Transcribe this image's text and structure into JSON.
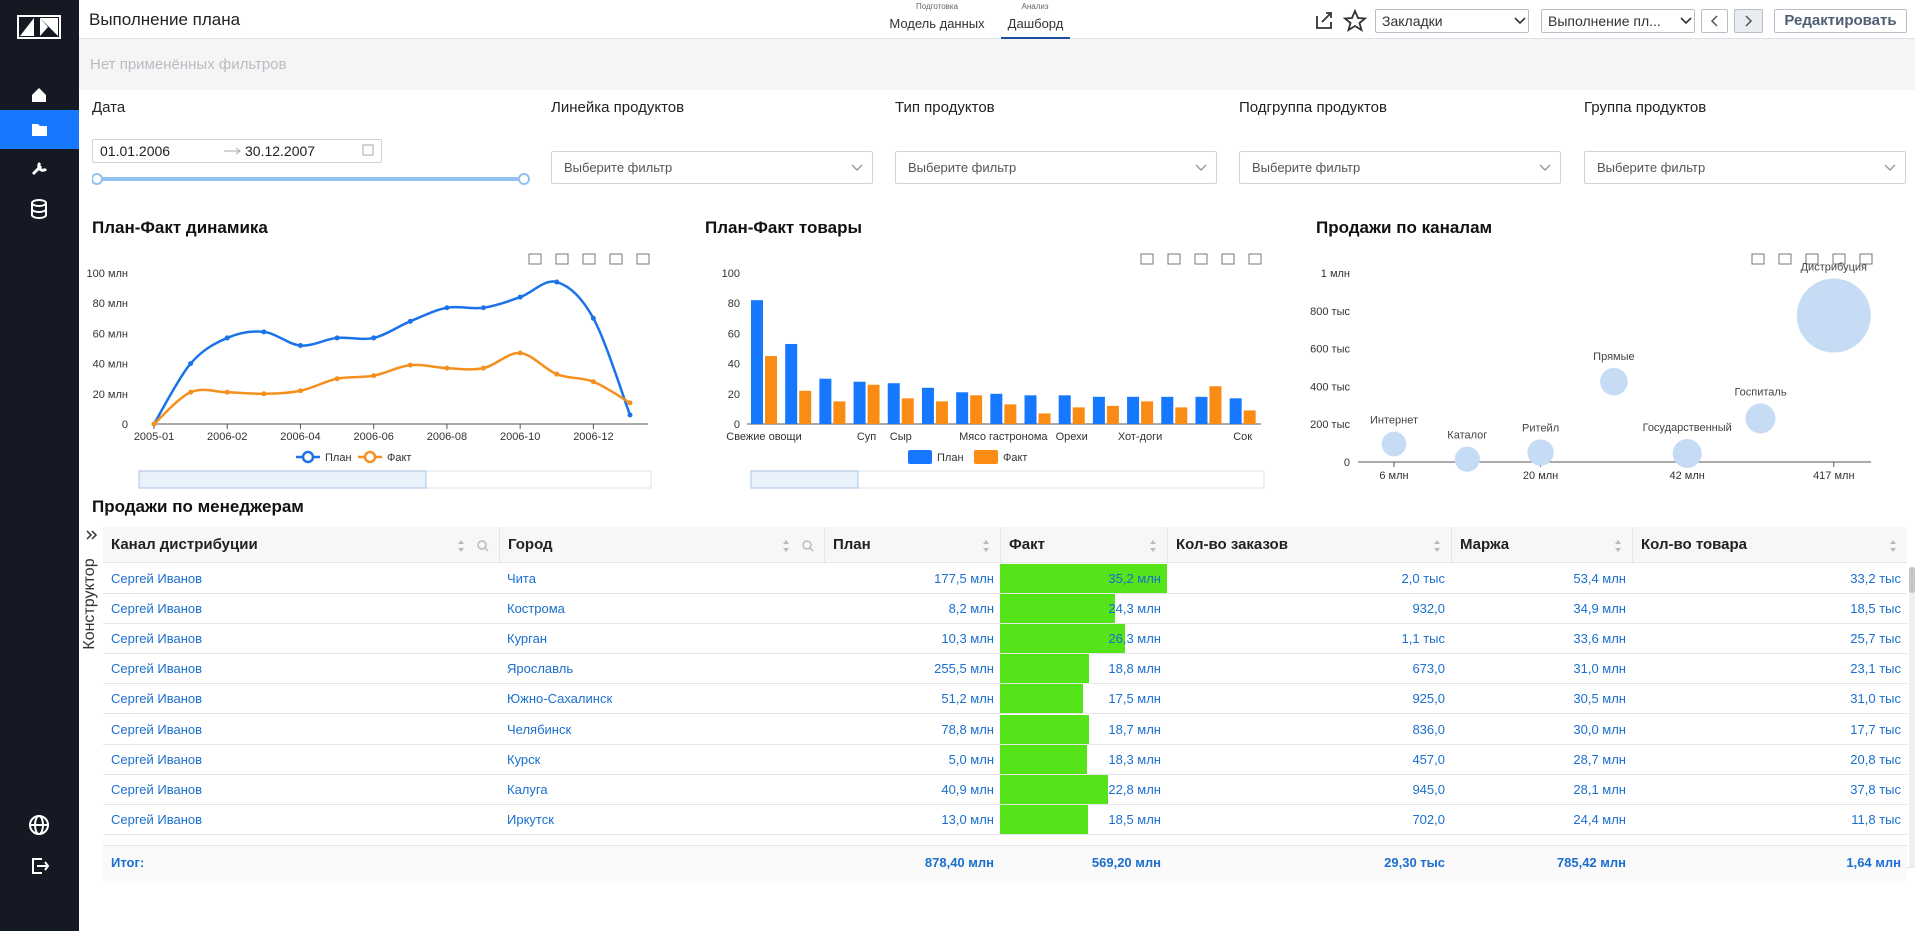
{
  "header": {
    "title": "Выполнение плана",
    "tabs": [
      {
        "caption": "Подготовка",
        "label": "Модель данных"
      },
      {
        "caption": "Анализ",
        "label": "Дашборд"
      }
    ],
    "bookmarks": "Закладки",
    "page_select": "Выполнение пл...",
    "edit_button": "Редактировать"
  },
  "filter_bar": {
    "text": "Нет применённых фильтров"
  },
  "filters": {
    "date": {
      "label": "Дата",
      "from": "01.01.2006",
      "to": "30.12.2007"
    },
    "selects": [
      {
        "label": "Линейка продуктов",
        "placeholder": "Выберите фильтр"
      },
      {
        "label": "Тип продуктов",
        "placeholder": "Выберите фильтр"
      },
      {
        "label": "Подгруппа продуктов",
        "placeholder": "Выберите фильтр"
      },
      {
        "label": "Группа продуктов",
        "placeholder": "Выберите фильтр"
      }
    ]
  },
  "chart_data": [
    {
      "type": "line",
      "title": "План-Факт динамика",
      "categories": [
        "2005-01",
        null,
        "2006-02",
        null,
        "2006-04",
        null,
        "2006-06",
        null,
        "2006-08",
        null,
        "2006-10",
        null,
        "2006-12",
        null
      ],
      "series": [
        {
          "name": "План",
          "color": "#1a73e8",
          "values": [
            0,
            40,
            57,
            61,
            52,
            57,
            57,
            68,
            77,
            77,
            84,
            94,
            70,
            6
          ]
        },
        {
          "name": "Факт",
          "color": "#f5901e",
          "values": [
            0,
            21,
            21,
            20,
            22,
            30,
            32,
            39,
            37,
            37,
            47,
            33,
            28,
            14
          ]
        }
      ],
      "ylim": [
        0,
        100
      ],
      "yticks": [
        0,
        {
          "value": 20,
          "label": "20 млн"
        },
        {
          "value": 40,
          "label": "40 млн"
        },
        {
          "value": 60,
          "label": "60 млн"
        },
        {
          "value": 80,
          "label": "80 млн"
        },
        {
          "value": 100,
          "label": "100 млн"
        }
      ],
      "grid": false
    },
    {
      "type": "bar",
      "title": "План-Факт товары",
      "categories": [
        "Свежие овощи",
        null,
        null,
        "Суп",
        "Сыр",
        null,
        null,
        "Мясо гастронома",
        null,
        "Орехи",
        null,
        "Хот-доги",
        null,
        null,
        "Сок"
      ],
      "series": [
        {
          "name": "План",
          "color": "#1677ff",
          "values": [
            82,
            53,
            30,
            28,
            27,
            24,
            21,
            20,
            19,
            19,
            18,
            18,
            18,
            18,
            17
          ]
        },
        {
          "name": "Факт",
          "color": "#fa8c16",
          "values": [
            45,
            22,
            15,
            26,
            17,
            15,
            19,
            13,
            7,
            11,
            12,
            15,
            11,
            25,
            9
          ]
        }
      ],
      "ylim": [
        0,
        100
      ],
      "yticks": [
        0,
        20,
        40,
        60,
        80,
        100
      ],
      "grid": false
    },
    {
      "type": "scatter",
      "title": "Продажи по каналам",
      "categories": [
        "6 млн",
        null,
        "20 млн",
        null,
        "42 млн",
        null,
        "417 млн"
      ],
      "labels": [
        "Интернет",
        "Каталог",
        "Ритейл",
        "Прямые",
        "Государственный",
        "Госпиталь",
        "Дистрибуция"
      ],
      "values": [
        95000,
        15000,
        50000,
        425000,
        45000,
        230000,
        775000
      ],
      "sizes": [
        6,
        10,
        20,
        30,
        42,
        50,
        417
      ],
      "color": "#c6dcf5",
      "ylim": [
        0,
        1000000
      ],
      "yticks": [
        0,
        {
          "value": 200000,
          "label": "200 тыс"
        },
        {
          "value": 400000,
          "label": "400 тыс"
        },
        {
          "value": 600000,
          "label": "600 тыс"
        },
        {
          "value": 800000,
          "label": "800 тыс"
        },
        {
          "value": 1000000,
          "label": "1 млн"
        }
      ],
      "grid": false
    }
  ],
  "table": {
    "title": "Продажи по менеджерам",
    "side_tab": "Конструктор",
    "bar_color": "#55e31a",
    "columns": [
      "Канал дистрибуции",
      "Город",
      "План",
      "Факт",
      "Кол-во заказов",
      "Маржа",
      "Кол-во товара"
    ],
    "rows": [
      [
        "Сергей Иванов",
        "Чита",
        "177,5 млн",
        {
          "value": 35.2,
          "label": "35,2 млн"
        },
        "2,0 тыс",
        "53,4 млн",
        "33,2 тыс"
      ],
      [
        "Сергей Иванов",
        "Кострома",
        "8,2 млн",
        {
          "value": 24.3,
          "label": "24,3 млн"
        },
        "932,0",
        "34,9 млн",
        "18,5 тыс"
      ],
      [
        "Сергей Иванов",
        "Курган",
        "10,3 млн",
        {
          "value": 26.3,
          "label": "26,3 млн"
        },
        "1,1 тыс",
        "33,6 млн",
        "25,7 тыс"
      ],
      [
        "Сергей Иванов",
        "Ярославль",
        "255,5 млн",
        {
          "value": 18.8,
          "label": "18,8 млн"
        },
        "673,0",
        "31,0 млн",
        "23,1 тыс"
      ],
      [
        "Сергей Иванов",
        "Южно-Сахалинск",
        "51,2 млн",
        {
          "value": 17.5,
          "label": "17,5 млн"
        },
        "925,0",
        "30,5 млн",
        "31,0 тыс"
      ],
      [
        "Сергей Иванов",
        "Челябинск",
        "78,8 млн",
        {
          "value": 18.7,
          "label": "18,7 млн"
        },
        "836,0",
        "30,0 млн",
        "17,7 тыс"
      ],
      [
        "Сергей Иванов",
        "Курск",
        "5,0 млн",
        {
          "value": 18.3,
          "label": "18,3 млн"
        },
        "457,0",
        "28,7 млн",
        "20,8 тыс"
      ],
      [
        "Сергей Иванов",
        "Калуга",
        "40,9 млн",
        {
          "value": 22.8,
          "label": "22,8 млн"
        },
        "945,0",
        "28,1 млн",
        "37,8 тыс"
      ],
      [
        "Сергей Иванов",
        "Иркутск",
        "13,0 млн",
        {
          "value": 18.5,
          "label": "18,5 млн"
        },
        "702,0",
        "24,4 млн",
        "11,8 тыс"
      ]
    ],
    "totals": {
      "label": "Итог:",
      "values": [
        "878,40 млн",
        "569,20 млн",
        "29,30 тыс",
        "785,42 млн",
        "1,64 млн"
      ]
    }
  }
}
